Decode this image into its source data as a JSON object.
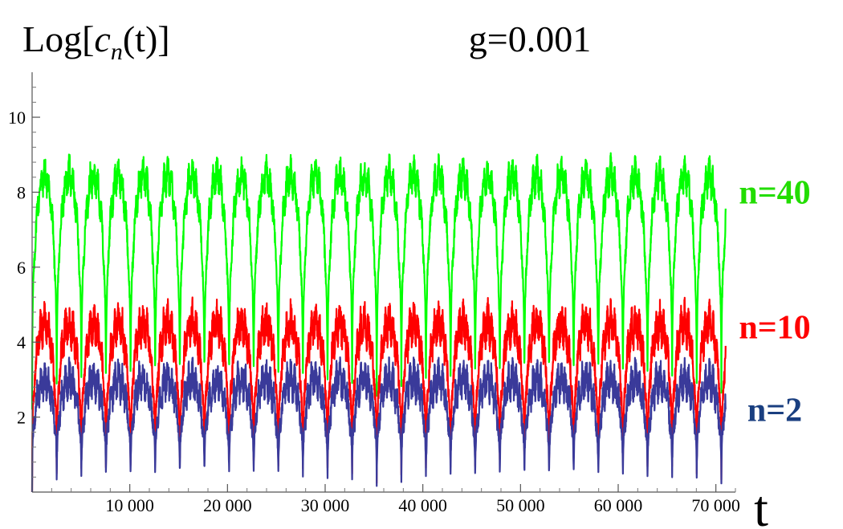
{
  "chart_data": {
    "type": "line",
    "title": "g=0.001",
    "ylabel_prefix": "Log[",
    "ylabel_var": "c",
    "ylabel_sub": "n",
    "ylabel_suffix": "(t)]",
    "xlabel": "t",
    "xlim": [
      0,
      72000
    ],
    "ylim": [
      0,
      11.2
    ],
    "x_ticks": [
      10000,
      20000,
      30000,
      40000,
      50000,
      60000,
      70000
    ],
    "x_tick_labels": [
      "10 000",
      "20 000",
      "30 000",
      "40 000",
      "50 000",
      "60 000",
      "70 000"
    ],
    "y_ticks": [
      2,
      4,
      6,
      8,
      10
    ],
    "y_tick_labels": [
      "2",
      "4",
      "6",
      "8",
      "10"
    ],
    "grid": false,
    "period": 2520,
    "t_end": 71000,
    "series": [
      {
        "name": "n=40",
        "color": "#00ff00",
        "peak": 9.1,
        "base": 8.45,
        "dip": 2.2,
        "noise": 0.35
      },
      {
        "name": "n=10",
        "color": "#ff0000",
        "peak": 5.2,
        "base": 4.5,
        "dip": 0.0,
        "noise": 0.45
      },
      {
        "name": "n=2",
        "color": "#3a3a9a",
        "peak": 3.6,
        "base": 3.0,
        "dip": 0.0,
        "noise": 0.4
      }
    ],
    "label_colors": {
      "n=40": "#22dd00",
      "n=10": "#ff0000",
      "n=2": "#1a3f80"
    }
  }
}
